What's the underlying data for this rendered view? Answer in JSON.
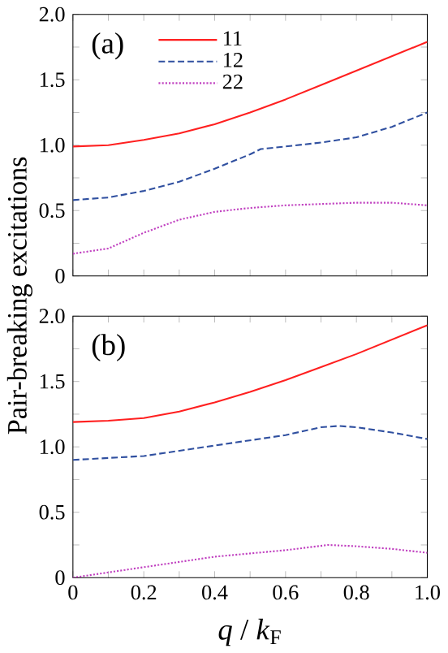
{
  "chart_data": [
    {
      "type": "line",
      "ylabel": "Pair-breaking excitations",
      "annotations": [
        "(a)"
      ],
      "legend": "top left",
      "tick_labels": "y",
      "xlim": [
        0,
        1
      ],
      "ylim": [
        0,
        2
      ],
      "xticks": [
        {
          "value": 0,
          "label": null
        },
        {
          "value": 0.1,
          "label": null
        },
        {
          "value": 0.2,
          "label": null
        },
        {
          "value": 0.3,
          "label": null
        },
        {
          "value": 0.4,
          "label": null
        },
        {
          "value": 0.5,
          "label": null
        },
        {
          "value": 0.6,
          "label": null
        },
        {
          "value": 0.7,
          "label": null
        },
        {
          "value": 0.8,
          "label": null
        },
        {
          "value": 0.9,
          "label": null
        },
        {
          "value": 1,
          "label": null
        }
      ],
      "yticks": [
        0,
        {
          "value": 0.25,
          "label": null
        },
        0.5,
        {
          "value": 0.75,
          "label": null
        },
        {
          "value": 1,
          "label": "1.0"
        },
        {
          "value": 1.25,
          "label": null
        },
        1.5,
        {
          "value": 1.75,
          "label": null
        },
        {
          "value": 2,
          "label": "2.0"
        }
      ],
      "series": [
        {
          "name": "11",
          "color": "#ff2020",
          "line_style": "solid",
          "x": [
            0,
            0.1,
            0.2,
            0.3,
            0.4,
            0.5,
            0.6,
            0.7,
            0.8,
            0.9,
            1
          ],
          "values": [
            0.99,
            1.0,
            1.04,
            1.09,
            1.16,
            1.25,
            1.35,
            1.46,
            1.57,
            1.68,
            1.79
          ]
        },
        {
          "name": "12",
          "color": "#3050a0",
          "line_style": "dashed",
          "x": [
            0,
            0.1,
            0.2,
            0.3,
            0.4,
            0.5,
            0.53,
            0.6,
            0.7,
            0.8,
            0.9,
            1
          ],
          "values": [
            0.58,
            0.6,
            0.65,
            0.72,
            0.82,
            0.93,
            0.97,
            0.99,
            1.02,
            1.06,
            1.14,
            1.25
          ]
        },
        {
          "name": "22",
          "color": "#c040c0",
          "line_style": "dotted",
          "x": [
            0,
            0.1,
            0.15,
            0.2,
            0.3,
            0.4,
            0.5,
            0.6,
            0.7,
            0.8,
            0.9,
            1
          ],
          "values": [
            0.17,
            0.21,
            0.27,
            0.33,
            0.43,
            0.49,
            0.52,
            0.54,
            0.55,
            0.56,
            0.56,
            0.54
          ]
        }
      ]
    },
    {
      "type": "line",
      "xlabel": "*q* / *k*$_{F}$",
      "annotations": [
        "(b)"
      ],
      "xlim": [
        0,
        1
      ],
      "ylim": [
        0,
        2
      ],
      "xticks": [
        0,
        {
          "value": 0.1,
          "label": null
        },
        0.2,
        {
          "value": 0.3,
          "label": null
        },
        0.4,
        {
          "value": 0.5,
          "label": null
        },
        0.6,
        {
          "value": 0.7,
          "label": null
        },
        0.8,
        {
          "value": 0.9,
          "label": null
        },
        {
          "value": 1,
          "label": "1.0"
        }
      ],
      "yticks": [
        0,
        {
          "value": 0.25,
          "label": null
        },
        0.5,
        {
          "value": 0.75,
          "label": null
        },
        {
          "value": 1,
          "label": "1.0"
        },
        {
          "value": 1.25,
          "label": null
        },
        1.5,
        {
          "value": 1.75,
          "label": null
        },
        {
          "value": 2,
          "label": "2.0"
        }
      ],
      "series": [
        {
          "color": "#ff2020",
          "line_style": "solid",
          "x": [
            0,
            0.1,
            0.2,
            0.3,
            0.4,
            0.5,
            0.6,
            0.7,
            0.8,
            0.9,
            1
          ],
          "values": [
            1.19,
            1.2,
            1.22,
            1.27,
            1.34,
            1.42,
            1.51,
            1.61,
            1.71,
            1.82,
            1.93
          ]
        },
        {
          "color": "#3050a0",
          "line_style": "dashed",
          "x": [
            0,
            0.2,
            0.4,
            0.6,
            0.7,
            0.75,
            0.8,
            0.9,
            1
          ],
          "values": [
            0.9,
            0.93,
            1.01,
            1.09,
            1.15,
            1.16,
            1.15,
            1.11,
            1.06
          ]
        },
        {
          "color": "#c040c0",
          "line_style": "dotted",
          "x": [
            0,
            0.2,
            0.4,
            0.6,
            0.72,
            0.8,
            0.9,
            1
          ],
          "values": [
            0.0,
            0.08,
            0.16,
            0.21,
            0.25,
            0.24,
            0.22,
            0.19
          ]
        }
      ]
    }
  ]
}
